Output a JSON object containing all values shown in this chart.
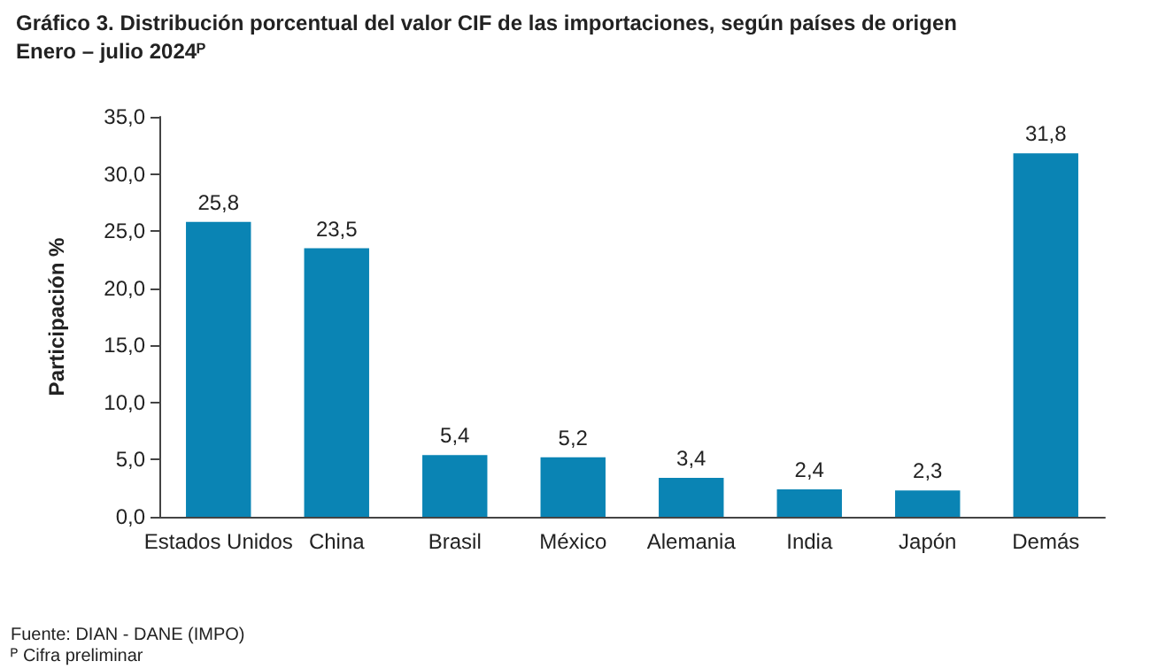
{
  "chart_data": {
    "type": "bar",
    "title": "Gráfico 3. Distribución porcentual del valor CIF de las importaciones, según países de origen",
    "subtitle": "Enero – julio 2024ᴾ",
    "ylabel": "Participación %",
    "categories": [
      "Estados Unidos",
      "China",
      "Brasil",
      "México",
      "Alemania",
      "India",
      "Japón",
      "Demás"
    ],
    "values": [
      25.8,
      23.5,
      5.4,
      5.2,
      3.4,
      2.4,
      2.3,
      31.8
    ],
    "value_labels": [
      "25,8",
      "23,5",
      "5,4",
      "5,2",
      "3,4",
      "2,4",
      "2,3",
      "31,8"
    ],
    "color": "#0a84b4",
    "ylim": [
      0,
      35
    ],
    "yticks": [
      {
        "value": 0,
        "label": "0,0"
      },
      {
        "value": 5,
        "label": "5,0"
      },
      {
        "value": 10,
        "label": "10,0"
      },
      {
        "value": 15,
        "label": "15,0"
      },
      {
        "value": 20,
        "label": "20,0"
      },
      {
        "value": 25,
        "label": "25,0"
      },
      {
        "value": 30,
        "label": "30,0"
      },
      {
        "value": 35,
        "label": "35,0"
      }
    ],
    "grid": false,
    "annotations": [
      "Fuente: DIAN - DANE (IMPO)",
      "ᴾ Cifra preliminar"
    ]
  }
}
